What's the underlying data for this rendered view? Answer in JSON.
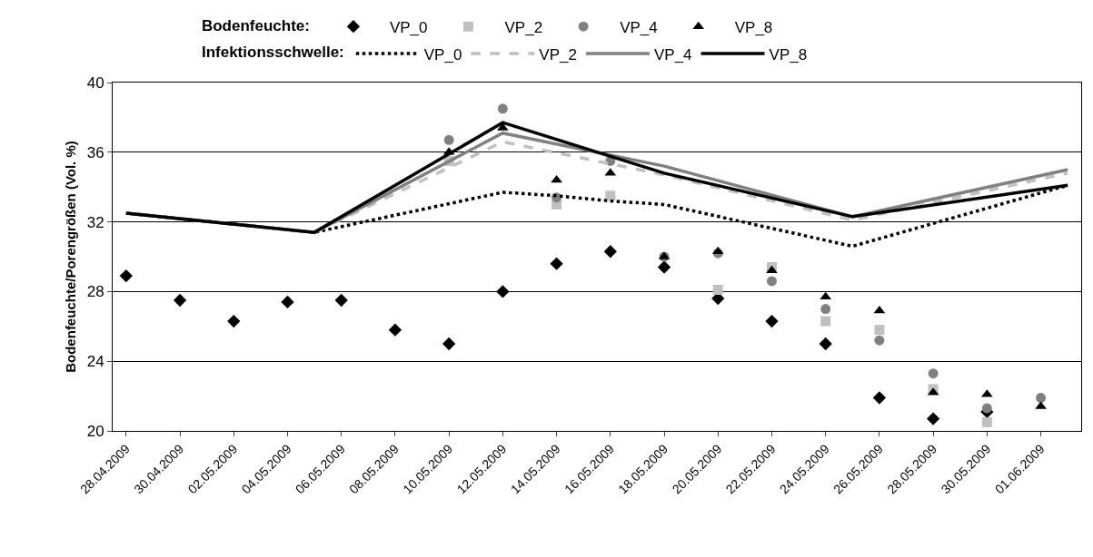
{
  "chart_data": {
    "type": "scatter",
    "ylabel": "Bodenfeuchte/Porengrößen (Vol. %)",
    "legend_title": [
      "Bodenfeuchte:",
      "Infektionsschwelle:"
    ],
    "xlim": [
      "2009-04-27T12:00",
      "2009-06-02T12:00"
    ],
    "xticks": [
      {
        "value": "2009-04-28",
        "label": "28.04.2009"
      },
      {
        "value": "2009-04-30",
        "label": "30.04.2009"
      },
      {
        "value": "2009-05-02",
        "label": "02.05.2009"
      },
      {
        "value": "2009-05-04",
        "label": "04.05.2009"
      },
      {
        "value": "2009-05-06",
        "label": "06.05.2009"
      },
      {
        "value": "2009-05-08",
        "label": "08.05.2009"
      },
      {
        "value": "2009-05-10",
        "label": "10.05.2009"
      },
      {
        "value": "2009-05-12",
        "label": "12.05.2009"
      },
      {
        "value": "2009-05-14",
        "label": "14.05.2009"
      },
      {
        "value": "2009-05-16",
        "label": "16.05.2009"
      },
      {
        "value": "2009-05-18",
        "label": "18.05.2009"
      },
      {
        "value": "2009-05-20",
        "label": "20.05.2009"
      },
      {
        "value": "2009-05-22",
        "label": "22.05.2009"
      },
      {
        "value": "2009-05-24",
        "label": "24.05.2009"
      },
      {
        "value": "2009-05-26",
        "label": "26.05.2009"
      },
      {
        "value": "2009-05-28",
        "label": "28.05.2009"
      },
      {
        "value": "2009-05-30",
        "label": "30.05.2009"
      },
      {
        "value": "2009-06-01",
        "label": "01.06.2009"
      }
    ],
    "ylim": [
      20,
      40
    ],
    "yticks": [
      20,
      24,
      28,
      32,
      36,
      40
    ],
    "grid": "y",
    "legend": "top",
    "x": [
      "2009-04-28",
      "2009-04-30",
      "2009-05-02",
      "2009-05-04",
      "2009-05-06",
      "2009-05-08",
      "2009-05-10",
      "2009-05-12",
      "2009-05-14",
      "2009-05-16",
      "2009-05-18",
      "2009-05-20",
      "2009-05-22",
      "2009-05-24",
      "2009-05-26",
      "2009-05-28",
      "2009-05-30",
      "2009-06-01"
    ],
    "series": [
      {
        "name": "VP_0",
        "marker": "diamond",
        "color": "#000000",
        "values": [
          28.9,
          27.5,
          26.3,
          27.4,
          27.5,
          25.8,
          25.0,
          28.0,
          29.6,
          30.3,
          29.4,
          27.6,
          26.3,
          25.0,
          21.9,
          20.7,
          21.1,
          null
        ]
      },
      {
        "name": "VP_2",
        "marker": "square",
        "color": "#c0c0c0",
        "values": [
          null,
          null,
          null,
          null,
          null,
          null,
          35.5,
          null,
          33.0,
          33.5,
          null,
          28.1,
          29.4,
          26.3,
          25.8,
          22.4,
          20.5,
          null
        ]
      },
      {
        "name": "VP_4",
        "marker": "circle",
        "color": "#808080",
        "values": [
          null,
          null,
          null,
          null,
          null,
          null,
          36.7,
          38.5,
          33.4,
          35.5,
          30.0,
          30.2,
          28.6,
          27.0,
          25.2,
          23.3,
          21.3,
          21.9
        ]
      },
      {
        "name": "VP_8",
        "marker": "triangle",
        "color": "#000000",
        "values": [
          null,
          null,
          null,
          null,
          null,
          null,
          36.0,
          37.4,
          34.4,
          34.8,
          30.0,
          30.3,
          29.2,
          27.7,
          26.9,
          22.2,
          22.1,
          21.4
        ]
      },
      {
        "name": "VP_0",
        "type": "line",
        "line_style": "dotted",
        "color": "#000000",
        "x": [
          "2009-04-28",
          "2009-05-05",
          "2009-05-12",
          "2009-05-14",
          "2009-05-16",
          "2009-05-18",
          "2009-05-25",
          "2009-06-02"
        ],
        "values": [
          32.5,
          31.4,
          33.7,
          33.5,
          33.2,
          33.0,
          30.6,
          34.1
        ]
      },
      {
        "name": "VP_2",
        "type": "line",
        "line_style": "dashed",
        "color": "#c0c0c0",
        "x": [
          "2009-04-28",
          "2009-05-05",
          "2009-05-12",
          "2009-05-18",
          "2009-05-25",
          "2009-06-02"
        ],
        "values": [
          32.5,
          31.4,
          36.6,
          34.7,
          32.1,
          34.8
        ]
      },
      {
        "name": "VP_4",
        "type": "line",
        "line_style": "solid",
        "color": "#808080",
        "x": [
          "2009-04-28",
          "2009-05-05",
          "2009-05-12",
          "2009-05-18",
          "2009-05-25",
          "2009-06-02"
        ],
        "values": [
          32.5,
          31.4,
          37.1,
          35.2,
          32.3,
          35.0
        ]
      },
      {
        "name": "VP_8",
        "type": "line",
        "line_style": "solid",
        "color": "#000000",
        "x": [
          "2009-04-28",
          "2009-05-05",
          "2009-05-12",
          "2009-05-18",
          "2009-05-25",
          "2009-06-02"
        ],
        "values": [
          32.5,
          31.4,
          37.7,
          34.8,
          32.3,
          34.1
        ]
      }
    ]
  }
}
